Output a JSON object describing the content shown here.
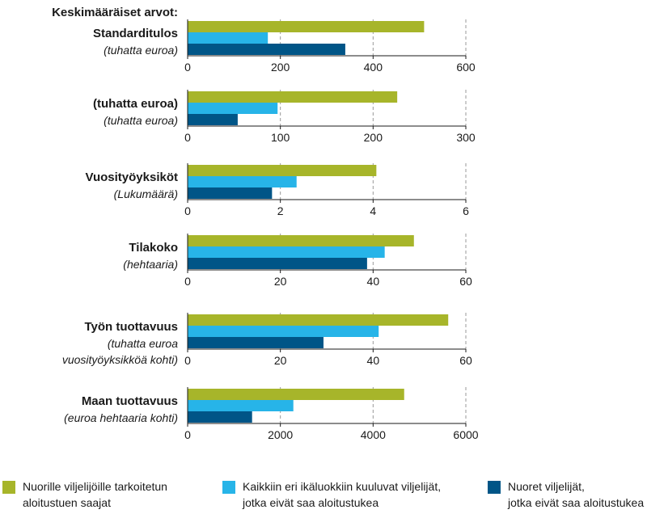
{
  "heading": "Keskimääräiset arvot:",
  "colors": {
    "series": [
      "#a7b52a",
      "#27b4e8",
      "#005587"
    ],
    "axis": "#1a1a1a",
    "grid": "#9a9a9a",
    "text": "#1a1a1a"
  },
  "chart_data": {
    "type": "bar",
    "orientation": "horizontal",
    "grid": true,
    "legend_position": "bottom",
    "series_names": [
      "Nuorille viljelijöille tarkoitetun aloitustuen saajat",
      "Kaikkiin eri ikäluokkiin kuuluvat viljelijät, jotka eivät saa aloitustukea",
      "Nuoret viljelijät, jotka eivät saa aloitustukea"
    ],
    "legend_lines": [
      [
        "Nuorille viljelijöille tarkoitetun",
        "aloitustuen saajat"
      ],
      [
        "Kaikkiin eri ikäluokkiin kuuluvat viljelijät,",
        "jotka eivät saa aloitustukea"
      ],
      [
        "Nuoret viljelijät,",
        "jotka eivät saa aloitustukea"
      ]
    ],
    "panels": [
      {
        "title": "Standarditulos",
        "subtitle_lines": [
          "(tuhatta euroa)"
        ],
        "xlim": [
          0,
          600
        ],
        "ticks": [
          0,
          200,
          400,
          600
        ],
        "tick_labels": [
          "0",
          "200",
          "400",
          "600"
        ],
        "values": [
          510,
          173,
          340
        ]
      },
      {
        "title": "(tuhatta euroa)",
        "subtitle_lines": [
          "(tuhatta euroa)"
        ],
        "xlim": [
          0,
          300
        ],
        "ticks": [
          0,
          100,
          200,
          300
        ],
        "tick_labels": [
          "0",
          "100",
          "200",
          "300"
        ],
        "values": [
          226,
          97,
          54
        ]
      },
      {
        "title": "Vuosityöyksiköt",
        "subtitle_lines": [
          "(Lukumäärä)"
        ],
        "xlim": [
          0,
          6
        ],
        "ticks": [
          0,
          2,
          4,
          6
        ],
        "tick_labels": [
          "0",
          "2",
          "4",
          "6"
        ],
        "values": [
          4.07,
          2.35,
          1.82
        ]
      },
      {
        "title": "Tilakoko",
        "subtitle_lines": [
          "(hehtaaria)"
        ],
        "xlim": [
          0,
          60
        ],
        "ticks": [
          0,
          20,
          40,
          60
        ],
        "tick_labels": [
          "0",
          "20",
          "40",
          "60"
        ],
        "values": [
          48.8,
          42.5,
          38.7
        ]
      },
      {
        "title": "Työn tuottavuus",
        "subtitle_lines": [
          "(tuhatta euroa",
          "vuosityöyksikköä kohti)"
        ],
        "xlim": [
          0,
          60
        ],
        "ticks": [
          0,
          20,
          40,
          60
        ],
        "tick_labels": [
          "0",
          "20",
          "40",
          "60"
        ],
        "values": [
          56.2,
          41.2,
          29.3
        ]
      },
      {
        "title": "Maan tuottavuus",
        "subtitle_lines": [
          "(euroa hehtaaria kohti)"
        ],
        "xlim": [
          0,
          6000
        ],
        "ticks": [
          0,
          2000,
          4000,
          6000
        ],
        "tick_labels": [
          "0",
          "2000",
          "4000",
          "6000"
        ],
        "values": [
          4670,
          2280,
          1390
        ]
      }
    ]
  }
}
